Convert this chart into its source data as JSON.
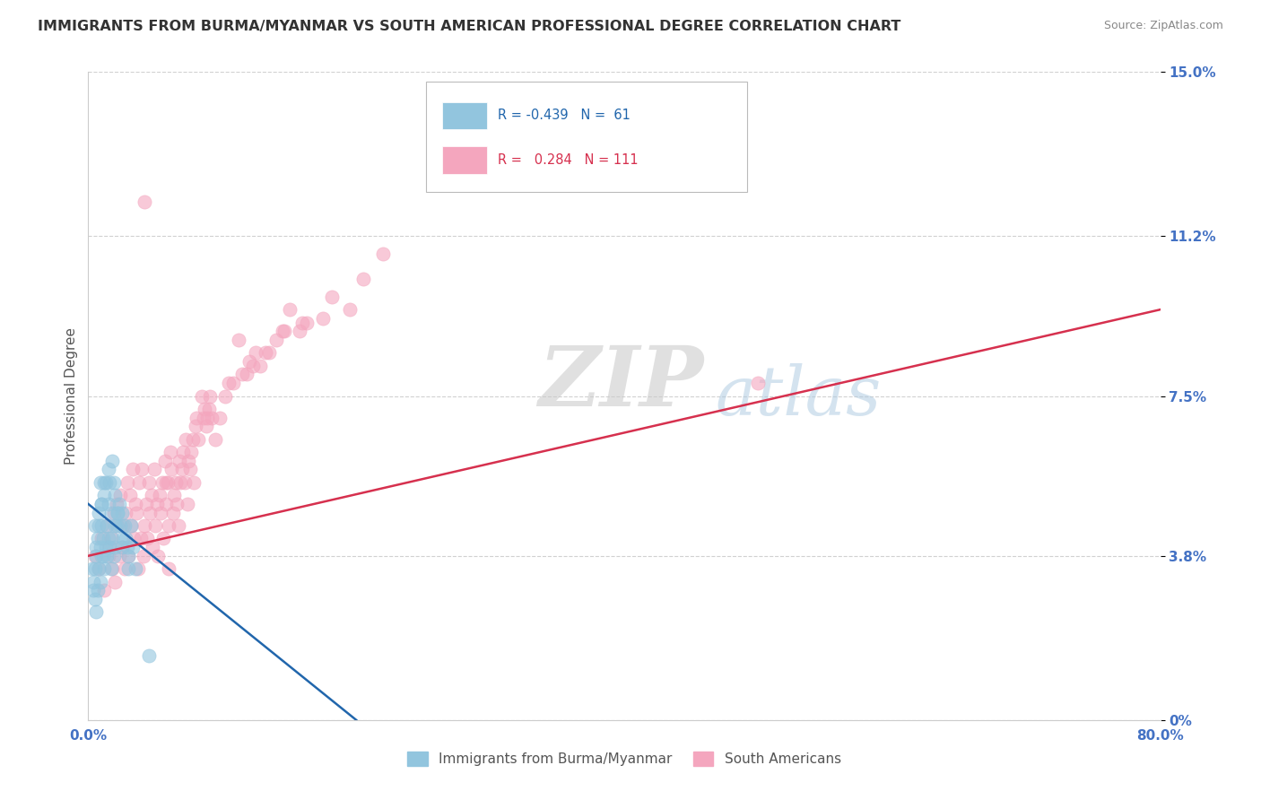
{
  "title": "IMMIGRANTS FROM BURMA/MYANMAR VS SOUTH AMERICAN PROFESSIONAL DEGREE CORRELATION CHART",
  "source": "Source: ZipAtlas.com",
  "ylabel": "Professional Degree",
  "x_min": 0.0,
  "x_max": 80.0,
  "y_min": 0.0,
  "y_max": 15.0,
  "y_ticks": [
    0.0,
    3.8,
    7.5,
    11.2,
    15.0
  ],
  "y_tick_labels": [
    "0%",
    "3.8%",
    "7.5%",
    "11.2%",
    "15.0%"
  ],
  "legend_blue_r": "-0.439",
  "legend_blue_n": "61",
  "legend_pink_r": "0.284",
  "legend_pink_n": "111",
  "legend_blue_label": "Immigrants from Burma/Myanmar",
  "legend_pink_label": "South Americans",
  "blue_color": "#92c5de",
  "pink_color": "#f4a6be",
  "blue_line_color": "#2166ac",
  "pink_line_color": "#d6304e",
  "watermark_zip": "ZIP",
  "watermark_atlas": "atlas",
  "background_color": "#ffffff",
  "grid_color": "#cccccc",
  "title_color": "#333333",
  "axis_label_color": "#4472c4",
  "blue_scatter_x": [
    0.3,
    0.4,
    0.5,
    0.5,
    0.6,
    0.6,
    0.7,
    0.7,
    0.8,
    0.8,
    0.9,
    0.9,
    1.0,
    1.0,
    1.0,
    1.1,
    1.1,
    1.2,
    1.2,
    1.3,
    1.3,
    1.4,
    1.4,
    1.5,
    1.5,
    1.6,
    1.6,
    1.7,
    1.7,
    1.8,
    1.8,
    1.9,
    1.9,
    2.0,
    2.0,
    2.1,
    2.2,
    2.3,
    2.4,
    2.5,
    2.6,
    2.7,
    2.8,
    2.9,
    3.0,
    3.2,
    3.3,
    3.5,
    4.5,
    0.4,
    0.5,
    0.6,
    0.8,
    1.0,
    1.2,
    1.5,
    2.0,
    2.5,
    3.0,
    2.2,
    0.9
  ],
  "blue_scatter_y": [
    3.5,
    3.2,
    2.8,
    4.5,
    3.8,
    2.5,
    4.2,
    3.0,
    3.5,
    4.8,
    3.2,
    4.0,
    5.0,
    3.8,
    4.5,
    4.2,
    3.8,
    3.5,
    5.2,
    4.0,
    5.5,
    3.8,
    4.5,
    4.2,
    5.8,
    4.0,
    5.5,
    4.8,
    3.5,
    4.2,
    6.0,
    5.5,
    3.8,
    4.0,
    5.2,
    4.5,
    4.8,
    5.0,
    4.5,
    4.8,
    4.2,
    4.5,
    4.2,
    4.0,
    3.8,
    4.5,
    4.0,
    3.5,
    1.5,
    3.0,
    3.5,
    4.0,
    4.5,
    5.0,
    5.5,
    5.0,
    4.5,
    4.0,
    3.5,
    4.8,
    5.5
  ],
  "pink_scatter_x": [
    0.5,
    0.8,
    1.0,
    1.2,
    1.4,
    1.5,
    1.6,
    1.7,
    1.8,
    1.9,
    2.0,
    2.1,
    2.2,
    2.3,
    2.4,
    2.5,
    2.6,
    2.7,
    2.8,
    2.9,
    3.0,
    3.1,
    3.2,
    3.3,
    3.4,
    3.5,
    3.6,
    3.7,
    3.8,
    3.9,
    4.0,
    4.1,
    4.2,
    4.3,
    4.4,
    4.5,
    4.6,
    4.7,
    4.8,
    4.9,
    5.0,
    5.1,
    5.2,
    5.3,
    5.4,
    5.5,
    5.6,
    5.7,
    5.8,
    5.9,
    6.0,
    6.1,
    6.2,
    6.3,
    6.4,
    6.5,
    6.6,
    6.7,
    6.8,
    6.9,
    7.0,
    7.1,
    7.2,
    7.3,
    7.4,
    7.5,
    7.6,
    7.7,
    7.8,
    7.9,
    8.0,
    8.1,
    8.2,
    8.5,
    8.6,
    8.7,
    8.8,
    8.9,
    9.0,
    9.1,
    9.2,
    9.5,
    9.8,
    10.2,
    10.5,
    10.8,
    11.2,
    11.5,
    11.8,
    12.0,
    12.3,
    12.5,
    12.8,
    13.2,
    13.5,
    14.0,
    14.5,
    14.6,
    15.0,
    15.8,
    16.0,
    16.3,
    17.5,
    18.2,
    19.5,
    20.5,
    22.0,
    50.0,
    4.2,
    5.8,
    6.0
  ],
  "pink_scatter_y": [
    3.8,
    3.5,
    4.2,
    3.0,
    4.5,
    3.8,
    4.0,
    4.2,
    3.5,
    4.8,
    3.2,
    5.0,
    4.5,
    3.8,
    5.2,
    4.0,
    4.5,
    3.5,
    4.8,
    5.5,
    3.8,
    5.2,
    4.5,
    5.8,
    4.2,
    5.0,
    4.8,
    3.5,
    5.5,
    4.2,
    5.8,
    3.8,
    4.5,
    5.0,
    4.2,
    5.5,
    4.8,
    5.2,
    4.0,
    5.8,
    4.5,
    5.0,
    3.8,
    5.2,
    4.8,
    5.5,
    4.2,
    6.0,
    5.0,
    5.5,
    4.5,
    6.2,
    5.8,
    4.8,
    5.2,
    5.5,
    5.0,
    4.5,
    6.0,
    5.5,
    5.8,
    6.2,
    5.5,
    6.5,
    5.0,
    6.0,
    5.8,
    6.2,
    6.5,
    5.5,
    6.8,
    7.0,
    6.5,
    7.5,
    7.0,
    7.2,
    6.8,
    7.0,
    7.2,
    7.5,
    7.0,
    6.5,
    7.0,
    7.5,
    7.8,
    7.8,
    8.8,
    8.0,
    8.0,
    8.3,
    8.2,
    8.5,
    8.2,
    8.5,
    8.5,
    8.8,
    9.0,
    9.0,
    9.5,
    9.0,
    9.2,
    9.2,
    9.3,
    9.8,
    9.5,
    10.2,
    10.8,
    7.8,
    12.0,
    5.5,
    3.5
  ],
  "blue_trend_x0": 0.0,
  "blue_trend_y0": 5.0,
  "blue_trend_x1": 20.0,
  "blue_trend_y1": 0.0,
  "pink_trend_x0": 0.0,
  "pink_trend_y0": 3.8,
  "pink_trend_x1": 80.0,
  "pink_trend_y1": 9.5
}
